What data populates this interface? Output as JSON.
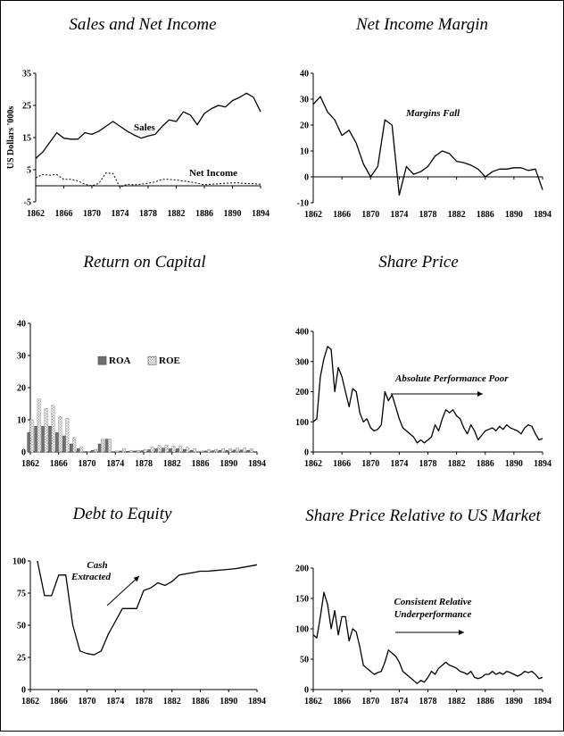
{
  "chart_data": [
    {
      "id": "sales",
      "type": "line",
      "title": "Sales and Net Income",
      "ylabel": "US Dollars '000s",
      "ylim": [
        -5,
        35
      ],
      "yticks": [
        -5,
        5,
        15,
        25,
        35
      ],
      "xlim": [
        1862,
        1894
      ],
      "xticks": [
        1862,
        1866,
        1870,
        1874,
        1878,
        1882,
        1886,
        1890,
        1894
      ],
      "series": [
        {
          "name": "Sales",
          "style": "solid",
          "x": [
            1862,
            1863,
            1864,
            1865,
            1866,
            1867,
            1868,
            1869,
            1870,
            1871,
            1872,
            1873,
            1874,
            1875,
            1876,
            1877,
            1878,
            1879,
            1880,
            1881,
            1882,
            1883,
            1884,
            1885,
            1886,
            1887,
            1888,
            1889,
            1890,
            1891,
            1892,
            1893,
            1894
          ],
          "values": [
            8.5,
            10.5,
            13.5,
            16.5,
            14.8,
            14.5,
            14.5,
            16.5,
            16,
            17,
            18.5,
            20,
            18.5,
            17,
            15.8,
            14.8,
            15.5,
            16,
            18.5,
            20.5,
            20,
            23,
            22,
            19,
            22.5,
            24,
            25,
            24.5,
            26.5,
            27.5,
            28.8,
            27.5,
            23
          ]
        },
        {
          "name": "Net Income",
          "style": "dotted",
          "x": [
            1862,
            1863,
            1864,
            1865,
            1866,
            1867,
            1868,
            1869,
            1870,
            1871,
            1872,
            1873,
            1874,
            1875,
            1876,
            1877,
            1878,
            1879,
            1880,
            1881,
            1882,
            1883,
            1884,
            1885,
            1886,
            1887,
            1888,
            1889,
            1890,
            1891,
            1892,
            1893,
            1894
          ],
          "values": [
            2.5,
            3.5,
            3.3,
            3.5,
            2,
            2,
            1.5,
            0.5,
            0,
            0.8,
            4,
            3.8,
            -0.5,
            0.5,
            0.3,
            0.5,
            0.8,
            1.2,
            2,
            2,
            1.8,
            1.5,
            1.2,
            0.8,
            0.3,
            0.5,
            0.6,
            0.8,
            0.9,
            0.9,
            0.7,
            0.6,
            0.5
          ]
        }
      ],
      "annotations": [
        "Sales",
        "Net Income"
      ]
    },
    {
      "id": "margin",
      "type": "line",
      "title": "Net Income Margin",
      "ylim": [
        -10,
        40
      ],
      "yticks": [
        -10,
        0,
        10,
        20,
        30,
        40
      ],
      "xlim": [
        1862,
        1894
      ],
      "xticks": [
        1862,
        1866,
        1870,
        1874,
        1878,
        1882,
        1886,
        1890,
        1894
      ],
      "series": [
        {
          "name": "",
          "style": "solid",
          "x": [
            1862,
            1863,
            1864,
            1865,
            1866,
            1867,
            1868,
            1869,
            1870,
            1871,
            1872,
            1873,
            1874,
            1875,
            1876,
            1877,
            1878,
            1879,
            1880,
            1881,
            1882,
            1883,
            1884,
            1885,
            1886,
            1887,
            1888,
            1889,
            1890,
            1891,
            1892,
            1893,
            1894
          ],
          "values": [
            28,
            31,
            25,
            22,
            16,
            18,
            13,
            5,
            0,
            4,
            22,
            20,
            -7,
            4,
            1,
            2,
            4,
            8,
            10,
            9,
            6,
            5.5,
            4.5,
            3,
            0,
            2,
            3,
            3,
            3.5,
            3.5,
            2.5,
            3,
            -5
          ]
        }
      ],
      "annotations": [
        "Margins Fall"
      ]
    },
    {
      "id": "roc",
      "type": "bar",
      "title": "Return on Capital",
      "ylim": [
        0,
        40
      ],
      "yticks": [
        0,
        10,
        20,
        30,
        40
      ],
      "xlim": [
        1862,
        1894
      ],
      "xticks": [
        1862,
        1866,
        1870,
        1874,
        1878,
        1882,
        1886,
        1890,
        1894
      ],
      "legend": "center",
      "categories": [
        1862,
        1863,
        1864,
        1865,
        1866,
        1867,
        1868,
        1869,
        1870,
        1871,
        1872,
        1873,
        1874,
        1875,
        1876,
        1877,
        1878,
        1879,
        1880,
        1881,
        1882,
        1883,
        1884,
        1885,
        1886,
        1887,
        1888,
        1889,
        1890,
        1891,
        1892,
        1893,
        1894
      ],
      "series": [
        {
          "name": "ROA",
          "style": "dark",
          "values": [
            6,
            8,
            8,
            8,
            6,
            5,
            2.5,
            1,
            0,
            0.5,
            2.5,
            4,
            0,
            0.3,
            0.2,
            0.3,
            0.4,
            0.7,
            1,
            1.2,
            1,
            1,
            0.8,
            0.5,
            0.1,
            0.3,
            0.4,
            0.5,
            0.5,
            0.6,
            0.6,
            0.5,
            0
          ]
        },
        {
          "name": "ROE",
          "style": "light",
          "values": [
            10,
            16.5,
            13.5,
            14.5,
            11,
            10.5,
            4.5,
            1.5,
            0.2,
            0.8,
            4,
            4,
            0.3,
            1,
            0.5,
            0.5,
            0.8,
            1.5,
            2,
            2.2,
            1.8,
            1.8,
            1.5,
            1,
            0.3,
            0.8,
            0.8,
            1,
            1,
            1.2,
            1.2,
            1,
            0
          ]
        }
      ]
    },
    {
      "id": "price",
      "type": "line",
      "title": "Share Price",
      "ylim": [
        0,
        400
      ],
      "yticks": [
        0,
        100,
        200,
        300,
        400
      ],
      "xlim": [
        1862,
        1894
      ],
      "xticks": [
        1862,
        1866,
        1870,
        1874,
        1878,
        1882,
        1886,
        1890,
        1894
      ],
      "series": [
        {
          "name": "",
          "style": "solid",
          "x": [
            1862,
            1862.5,
            1863,
            1863.5,
            1864,
            1864.5,
            1865,
            1865.5,
            1866,
            1866.5,
            1867,
            1867.5,
            1868,
            1868.5,
            1869,
            1869.5,
            1870,
            1870.5,
            1871,
            1871.5,
            1872,
            1872.5,
            1873,
            1873.5,
            1874,
            1874.5,
            1875,
            1875.5,
            1876,
            1876.5,
            1877,
            1877.5,
            1878,
            1878.5,
            1879,
            1879.5,
            1880,
            1880.5,
            1881,
            1881.5,
            1882,
            1882.5,
            1883,
            1883.5,
            1884,
            1884.5,
            1885,
            1885.5,
            1886,
            1886.5,
            1887,
            1887.5,
            1888,
            1888.5,
            1889,
            1889.5,
            1890,
            1890.5,
            1891,
            1891.5,
            1892,
            1892.5,
            1893,
            1893.5,
            1894
          ],
          "values": [
            100,
            110,
            250,
            310,
            350,
            340,
            200,
            280,
            250,
            200,
            150,
            210,
            200,
            130,
            100,
            110,
            80,
            70,
            75,
            90,
            200,
            170,
            190,
            150,
            110,
            80,
            70,
            60,
            50,
            30,
            40,
            30,
            40,
            50,
            90,
            70,
            110,
            140,
            130,
            140,
            120,
            110,
            80,
            60,
            90,
            70,
            40,
            55,
            70,
            75,
            80,
            70,
            85,
            75,
            90,
            80,
            75,
            70,
            60,
            80,
            90,
            85,
            60,
            40,
            45
          ]
        }
      ],
      "annotations": [
        "Absolute Performance Poor"
      ]
    },
    {
      "id": "debt",
      "type": "line",
      "title": "Debt to Equity",
      "ylim": [
        0,
        100
      ],
      "yticks": [
        0,
        25,
        50,
        75,
        100
      ],
      "xlim": [
        1862,
        1894
      ],
      "xticks": [
        1862,
        1866,
        1870,
        1874,
        1878,
        1882,
        1886,
        1890,
        1894
      ],
      "series": [
        {
          "name": "",
          "style": "solid",
          "x": [
            1863,
            1864,
            1865,
            1866,
            1867,
            1868,
            1869,
            1870,
            1871,
            1872,
            1873,
            1874,
            1875,
            1876,
            1877,
            1878,
            1879,
            1880,
            1881,
            1882,
            1883,
            1884,
            1885,
            1886,
            1887,
            1888,
            1889,
            1890,
            1891,
            1892,
            1893,
            1894
          ],
          "values": [
            100,
            73,
            73,
            89,
            89,
            50,
            30,
            28,
            27,
            30,
            43,
            53,
            63,
            63,
            63,
            77,
            79,
            83,
            81,
            84,
            89,
            90,
            91,
            92,
            92,
            92.5,
            93,
            93.5,
            94,
            95,
            96,
            97
          ]
        }
      ],
      "annotations": [
        "Cash",
        "Extracted"
      ]
    },
    {
      "id": "relative",
      "type": "line",
      "title": "Share Price Relative to US Market",
      "ylim": [
        0,
        200
      ],
      "yticks": [
        0,
        50,
        100,
        150,
        200
      ],
      "xlim": [
        1862,
        1894
      ],
      "xticks": [
        1862,
        1866,
        1870,
        1874,
        1878,
        1882,
        1886,
        1890,
        1894
      ],
      "series": [
        {
          "name": "",
          "style": "solid",
          "x": [
            1862,
            1862.5,
            1863,
            1863.5,
            1864,
            1864.5,
            1865,
            1865.5,
            1866,
            1866.5,
            1867,
            1867.5,
            1868,
            1868.5,
            1869,
            1869.5,
            1870,
            1870.5,
            1871,
            1871.5,
            1872,
            1872.5,
            1873,
            1873.5,
            1874,
            1874.5,
            1875,
            1875.5,
            1876,
            1876.5,
            1877,
            1877.5,
            1878,
            1878.5,
            1879,
            1879.5,
            1880,
            1880.5,
            1881,
            1881.5,
            1882,
            1882.5,
            1883,
            1883.5,
            1884,
            1884.5,
            1885,
            1885.5,
            1886,
            1886.5,
            1887,
            1887.5,
            1888,
            1888.5,
            1889,
            1889.5,
            1890,
            1890.5,
            1891,
            1891.5,
            1892,
            1892.5,
            1893,
            1893.5,
            1894
          ],
          "values": [
            90,
            85,
            120,
            160,
            140,
            100,
            130,
            90,
            120,
            120,
            80,
            100,
            95,
            70,
            40,
            35,
            30,
            25,
            28,
            30,
            45,
            65,
            60,
            55,
            45,
            30,
            25,
            20,
            15,
            10,
            15,
            12,
            20,
            30,
            25,
            35,
            40,
            45,
            40,
            38,
            35,
            30,
            28,
            25,
            30,
            20,
            18,
            20,
            25,
            25,
            30,
            25,
            28,
            25,
            30,
            28,
            25,
            22,
            25,
            30,
            28,
            30,
            25,
            18,
            20
          ]
        }
      ],
      "annotations": [
        "Consistent Relative",
        "Underperformance"
      ]
    }
  ]
}
